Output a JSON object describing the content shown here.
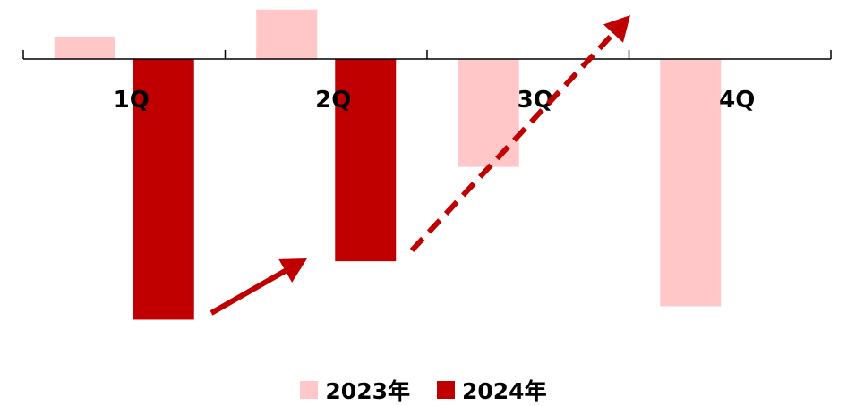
{
  "chart_data": {
    "type": "bar",
    "categories": [
      "1Q",
      "2Q",
      "3Q",
      "4Q"
    ],
    "series": [
      {
        "name": "2023年",
        "color": "#FFC7C7",
        "values": [
          2.5,
          5.5,
          -12.0,
          -27.5
        ]
      },
      {
        "name": "2024年",
        "color": "#C00000",
        "values": [
          -29.0,
          -22.5,
          null,
          null
        ]
      }
    ],
    "ylim": [
      -30,
      6
    ],
    "grid": false,
    "legend": "bottom",
    "annotations": [
      {
        "type": "arrow",
        "style": "solid",
        "color": "#C00000",
        "from_category": "1Q",
        "to_category": "2Q",
        "direction": "up"
      },
      {
        "type": "arrow",
        "style": "dashed",
        "color": "#C00000",
        "from_category": "2Q",
        "to_category": "4Q",
        "direction": "up"
      }
    ]
  }
}
